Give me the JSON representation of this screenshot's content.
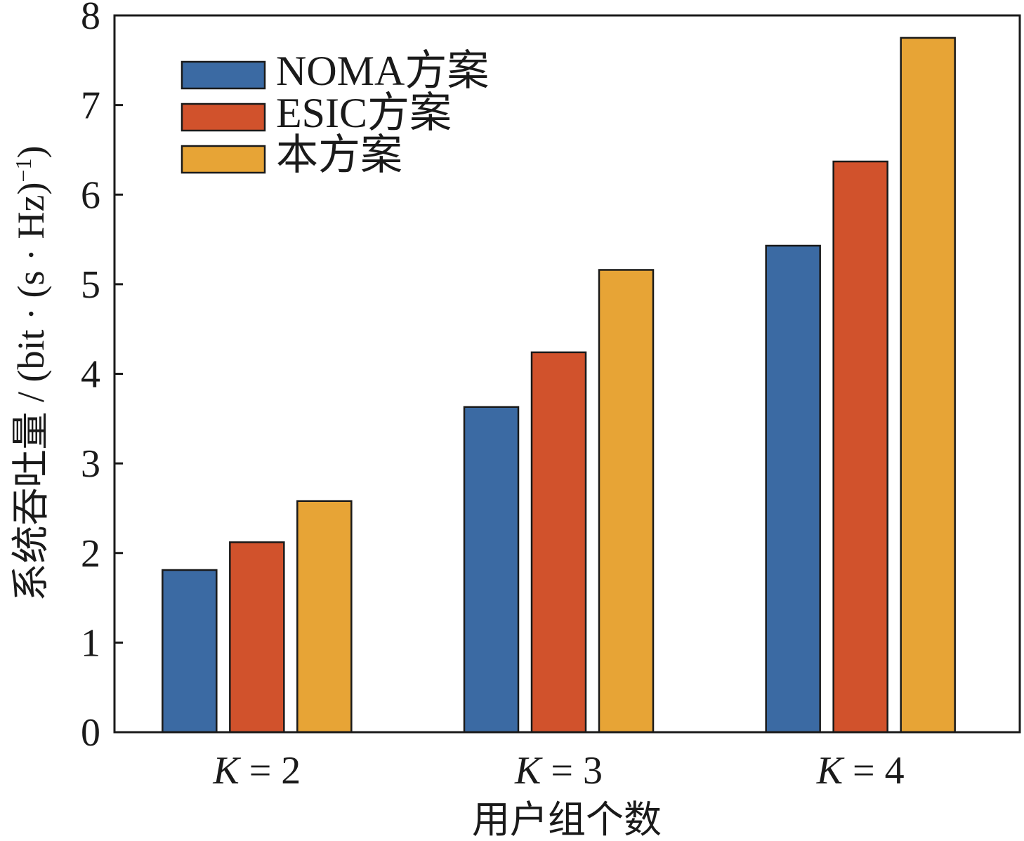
{
  "chart_data": {
    "type": "bar",
    "categories": [
      {
        "var": "K",
        "rest": " = 2"
      },
      {
        "var": "K",
        "rest": " = 3"
      },
      {
        "var": "K",
        "rest": " = 4"
      }
    ],
    "series": [
      {
        "name": "NOMA方案",
        "color": "#3b6aa3",
        "values": [
          1.81,
          3.63,
          5.43
        ]
      },
      {
        "name": "ESIC方案",
        "color": "#d1522c",
        "values": [
          2.12,
          4.24,
          6.37
        ]
      },
      {
        "name": "本方案",
        "color": "#e7a436",
        "values": [
          2.58,
          5.16,
          7.75
        ]
      }
    ],
    "xlabel": "用户组个数",
    "ylabel": {
      "main": "系统吞吐量 / (bit · (s · Hz)",
      "sup": "−1",
      "close": ")"
    },
    "ylim": [
      0,
      8
    ],
    "yticks": [
      "0",
      "1",
      "2",
      "3",
      "4",
      "5",
      "6",
      "7",
      "8"
    ],
    "grid": false,
    "legend_position": "top-left"
  }
}
